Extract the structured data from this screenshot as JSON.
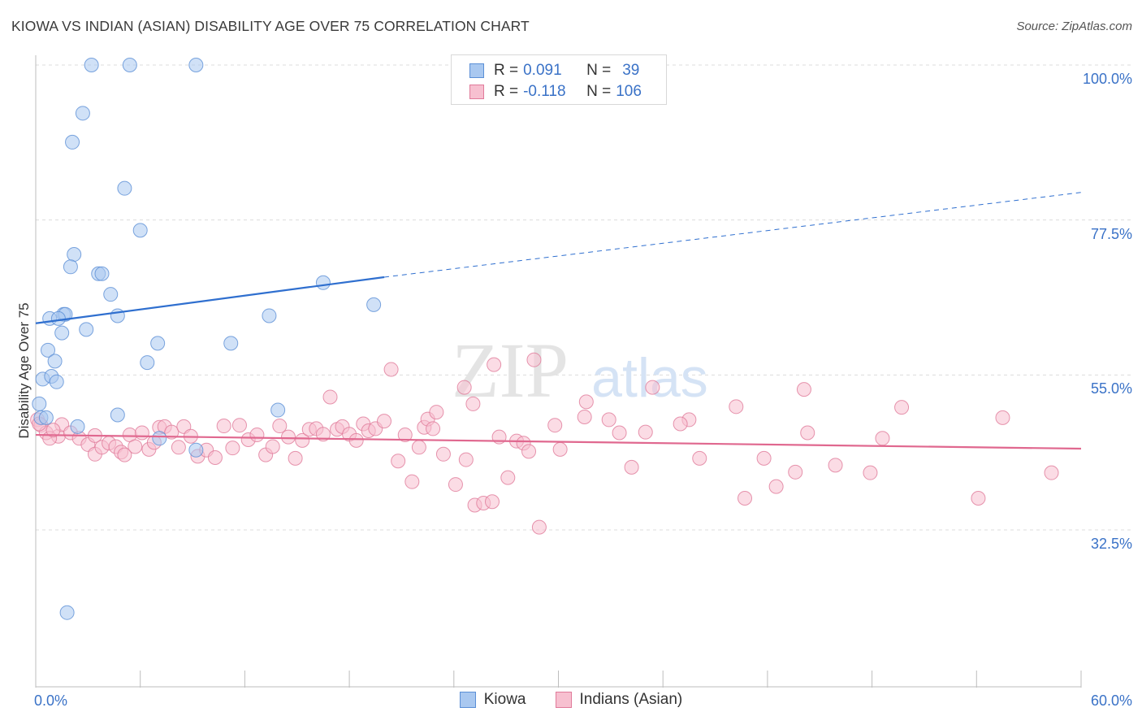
{
  "header": {
    "title": "KIOWA VS INDIAN (ASIAN) DISABILITY AGE OVER 75 CORRELATION CHART",
    "source": "Source: ZipAtlas.com"
  },
  "watermark": {
    "zip": "ZIP",
    "atlas": "atlas"
  },
  "legend": {
    "rows": [
      {
        "r_label": "R =",
        "r_value": "0.091",
        "n_label": "N =",
        "n_value": "39",
        "color": "#a9c8f0",
        "border": "#5b8fd6"
      },
      {
        "r_label": "R =",
        "r_value": "-0.118",
        "n_label": "N =",
        "n_value": "106",
        "color": "#f7c0d0",
        "border": "#e07a9a"
      }
    ]
  },
  "chart_data": {
    "type": "scatter",
    "title": "KIOWA VS INDIAN (ASIAN) DISABILITY AGE OVER 75 CORRELATION CHART",
    "xlabel": "",
    "ylabel": "Disability Age Over 75",
    "xlim": [
      0,
      60
    ],
    "ylim": [
      13,
      102
    ],
    "x_tick_labels": [
      "0.0%",
      "60.0%"
    ],
    "y_tick_labels": [
      "100.0%",
      "77.5%",
      "55.0%",
      "32.5%"
    ],
    "y_ticks": [
      100,
      77.5,
      55,
      32.5
    ],
    "grid": true,
    "legend_position": "bottom",
    "series": [
      {
        "name": "Kiowa",
        "color": "#a9c8f0",
        "stroke": "#5b8fd6",
        "trend": {
          "x": [
            0,
            20
          ],
          "y": [
            62.5,
            69.2
          ],
          "extend_to": 60,
          "extend_y": 81.5,
          "color": "#2f6fcf"
        },
        "points": [
          [
            3.2,
            100
          ],
          [
            5.4,
            100
          ],
          [
            9.2,
            100
          ],
          [
            2.7,
            93
          ],
          [
            2.1,
            88.8
          ],
          [
            5.1,
            82.1
          ],
          [
            6.0,
            76
          ],
          [
            2.2,
            72.5
          ],
          [
            2.0,
            70.7
          ],
          [
            3.6,
            69.7
          ],
          [
            3.8,
            69.7
          ],
          [
            4.3,
            66.7
          ],
          [
            16.5,
            68.4
          ],
          [
            19.4,
            65.2
          ],
          [
            1.6,
            63.8
          ],
          [
            1.7,
            63.8
          ],
          [
            0.8,
            63.2
          ],
          [
            4.7,
            63.6
          ],
          [
            1.3,
            63.2
          ],
          [
            13.4,
            63.6
          ],
          [
            1.5,
            61.1
          ],
          [
            2.9,
            61.6
          ],
          [
            7.0,
            59.6
          ],
          [
            11.2,
            59.6
          ],
          [
            0.7,
            58.6
          ],
          [
            1.1,
            57
          ],
          [
            6.4,
            56.8
          ],
          [
            0.4,
            54.4
          ],
          [
            0.9,
            54.8
          ],
          [
            1.2,
            54
          ],
          [
            0.2,
            50.8
          ],
          [
            13.9,
            49.9
          ],
          [
            4.7,
            49.2
          ],
          [
            0.3,
            48.8
          ],
          [
            0.6,
            48.8
          ],
          [
            2.4,
            47.5
          ],
          [
            7.1,
            45.8
          ],
          [
            9.2,
            44.1
          ],
          [
            1.8,
            20.5
          ]
        ]
      },
      {
        "name": "Indians (Asian)",
        "color": "#f7c0d0",
        "stroke": "#e07a9a",
        "trend": {
          "x": [
            0,
            60
          ],
          "y": [
            46.3,
            44.3
          ],
          "color": "#e0688f"
        },
        "points": [
          [
            0.1,
            48.5
          ],
          [
            0.3,
            47.7
          ],
          [
            0.6,
            46.6
          ],
          [
            1.3,
            46.1
          ],
          [
            1.5,
            47.8
          ],
          [
            2.0,
            46.6
          ],
          [
            2.5,
            45.8
          ],
          [
            3.0,
            44.9
          ],
          [
            3.4,
            46.2
          ],
          [
            3.4,
            43.5
          ],
          [
            3.8,
            44.5
          ],
          [
            4.2,
            45.1
          ],
          [
            4.6,
            44.6
          ],
          [
            4.9,
            43.8
          ],
          [
            5.1,
            43.4
          ],
          [
            5.4,
            46.3
          ],
          [
            5.7,
            44.6
          ],
          [
            6.1,
            46.6
          ],
          [
            6.5,
            44.2
          ],
          [
            6.8,
            45.2
          ],
          [
            7.1,
            47.4
          ],
          [
            7.4,
            47.5
          ],
          [
            7.8,
            46.7
          ],
          [
            8.2,
            44.5
          ],
          [
            8.5,
            47.5
          ],
          [
            8.9,
            46.1
          ],
          [
            9.3,
            43.2
          ],
          [
            9.8,
            44.1
          ],
          [
            10.3,
            43
          ],
          [
            10.8,
            47.6
          ],
          [
            11.3,
            44.4
          ],
          [
            11.7,
            47.7
          ],
          [
            12.2,
            45.6
          ],
          [
            12.7,
            46.3
          ],
          [
            13.2,
            43.4
          ],
          [
            13.6,
            44.6
          ],
          [
            14.0,
            47.6
          ],
          [
            14.5,
            46
          ],
          [
            14.9,
            42.9
          ],
          [
            15.3,
            45.5
          ],
          [
            15.7,
            47.1
          ],
          [
            16.1,
            47.2
          ],
          [
            16.5,
            46.4
          ],
          [
            16.9,
            51.8
          ],
          [
            17.3,
            47.1
          ],
          [
            17.6,
            47.5
          ],
          [
            18.0,
            46.4
          ],
          [
            18.4,
            45.5
          ],
          [
            18.8,
            47.9
          ],
          [
            19.1,
            46.9
          ],
          [
            19.5,
            47.2
          ],
          [
            20.0,
            48.3
          ],
          [
            20.4,
            55.8
          ],
          [
            20.8,
            42.5
          ],
          [
            21.2,
            46.3
          ],
          [
            21.6,
            39.5
          ],
          [
            22.0,
            44.5
          ],
          [
            22.3,
            47.4
          ],
          [
            22.5,
            48.6
          ],
          [
            22.8,
            47.2
          ],
          [
            23.0,
            49.6
          ],
          [
            23.4,
            43.5
          ],
          [
            24.1,
            39.1
          ],
          [
            24.6,
            53.2
          ],
          [
            24.7,
            42.7
          ],
          [
            25.1,
            50.8
          ],
          [
            25.2,
            36.1
          ],
          [
            25.7,
            36.4
          ],
          [
            26.2,
            36.6
          ],
          [
            26.3,
            56.5
          ],
          [
            26.6,
            46.0
          ],
          [
            27.1,
            40.1
          ],
          [
            27.6,
            45.4
          ],
          [
            28.0,
            45.1
          ],
          [
            28.3,
            43.9
          ],
          [
            28.6,
            57.2
          ],
          [
            28.9,
            32.9
          ],
          [
            29.8,
            47.7
          ],
          [
            30.1,
            44.2
          ],
          [
            31.5,
            48.9
          ],
          [
            31.6,
            51.1
          ],
          [
            32.9,
            48.5
          ],
          [
            33.5,
            46.6
          ],
          [
            34.2,
            41.6
          ],
          [
            35.0,
            46.7
          ],
          [
            35.4,
            53.2
          ],
          [
            37.5,
            48.5
          ],
          [
            37.0,
            47.9
          ],
          [
            38.1,
            42.9
          ],
          [
            40.2,
            50.4
          ],
          [
            40.7,
            37.1
          ],
          [
            41.8,
            42.9
          ],
          [
            42.5,
            38.8
          ],
          [
            43.6,
            40.9
          ],
          [
            44.3,
            46.6
          ],
          [
            44.1,
            52.9
          ],
          [
            45.9,
            41.9
          ],
          [
            47.9,
            40.8
          ],
          [
            48.6,
            45.8
          ],
          [
            49.7,
            50.3
          ],
          [
            54.1,
            37.1
          ],
          [
            55.5,
            48.8
          ],
          [
            58.3,
            40.8
          ],
          [
            0.2,
            47.9
          ],
          [
            0.8,
            45.8
          ],
          [
            1.0,
            47.0
          ]
        ]
      }
    ]
  },
  "bottom_legend": [
    {
      "label": "Kiowa",
      "color": "#a9c8f0",
      "border": "#5b8fd6"
    },
    {
      "label": "Indians (Asian)",
      "color": "#f7c0d0",
      "border": "#e07a9a"
    }
  ]
}
